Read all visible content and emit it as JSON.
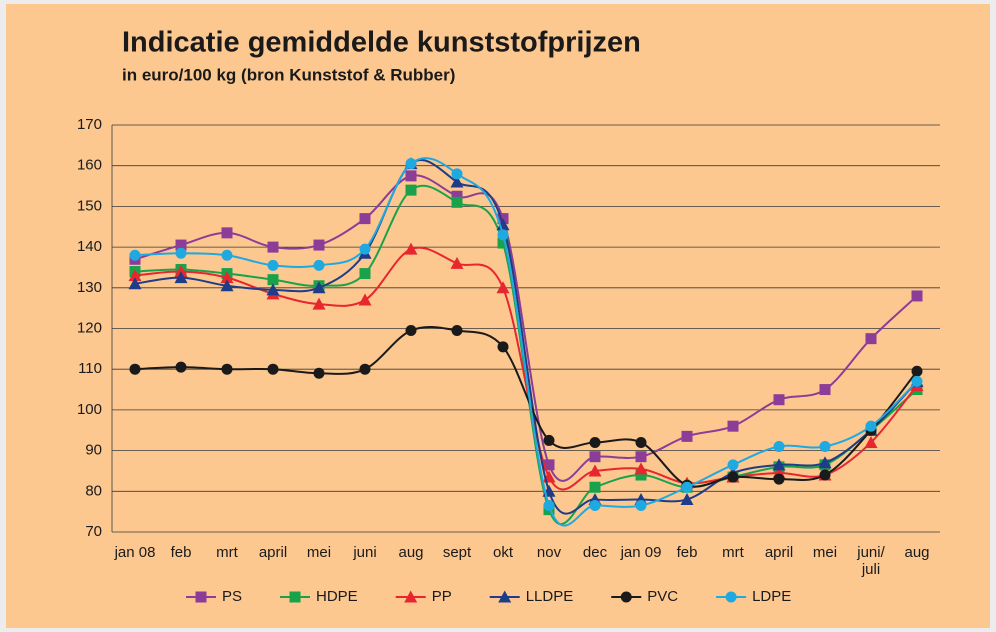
{
  "chart_data": {
    "type": "line",
    "title": "Indicatie gemiddelde kunststofprijzen",
    "subtitle": "in euro/100 kg (bron Kunststof & Rubber)",
    "categories": [
      "jan 08",
      "feb",
      "mrt",
      "april",
      "mei",
      "juni",
      "aug",
      "sept",
      "okt",
      "nov",
      "dec",
      "jan 09",
      "feb",
      "mrt",
      "april",
      "mei",
      "juni/\njuli",
      "aug"
    ],
    "series": [
      {
        "name": "PS",
        "color": "#8b3d97",
        "marker": "square",
        "values": [
          137,
          140.5,
          143.5,
          140,
          140.5,
          147,
          157.5,
          152.5,
          147,
          86.5,
          88.5,
          88.5,
          93.5,
          96,
          102.5,
          105,
          117.5,
          128
        ]
      },
      {
        "name": "HDPE",
        "color": "#1aa24b",
        "marker": "square",
        "values": [
          134,
          134.5,
          133.5,
          132,
          130.5,
          133.5,
          154,
          151,
          141,
          75.5,
          81,
          84,
          81,
          83.5,
          86,
          86.5,
          95,
          105
        ]
      },
      {
        "name": "PP",
        "color": "#e8262d",
        "marker": "triangle",
        "values": [
          133,
          134,
          132.5,
          128.5,
          126,
          127,
          139.5,
          136,
          130,
          83.5,
          85,
          85.5,
          82,
          83.5,
          84.5,
          84,
          92,
          106
        ]
      },
      {
        "name": "LLDPE",
        "color": "#1f3c88",
        "marker": "triangle",
        "values": [
          131,
          132.5,
          130.5,
          129.5,
          130,
          138.5,
          160.5,
          156,
          145.5,
          80,
          78,
          78,
          78,
          84.5,
          86.5,
          87,
          95,
          107
        ]
      },
      {
        "name": "PVC",
        "color": "#1a1a1a",
        "marker": "circle",
        "values": [
          110,
          110.5,
          110,
          110,
          109,
          110,
          119.5,
          119.5,
          115.5,
          92.5,
          92,
          92,
          81.5,
          83.5,
          83,
          84,
          95,
          109.5
        ]
      },
      {
        "name": "LDPE",
        "color": "#1ea9e1",
        "marker": "circle",
        "values": [
          138,
          138.5,
          138,
          135.5,
          135.5,
          139.5,
          160.5,
          158,
          143,
          76.5,
          76.5,
          76.5,
          81,
          86.5,
          91,
          91,
          96,
          107
        ]
      }
    ],
    "ylim": [
      70,
      170
    ],
    "yticks": [
      70,
      80,
      90,
      100,
      110,
      120,
      130,
      140,
      150,
      160,
      170
    ],
    "grid": true,
    "legend": "bottom"
  }
}
